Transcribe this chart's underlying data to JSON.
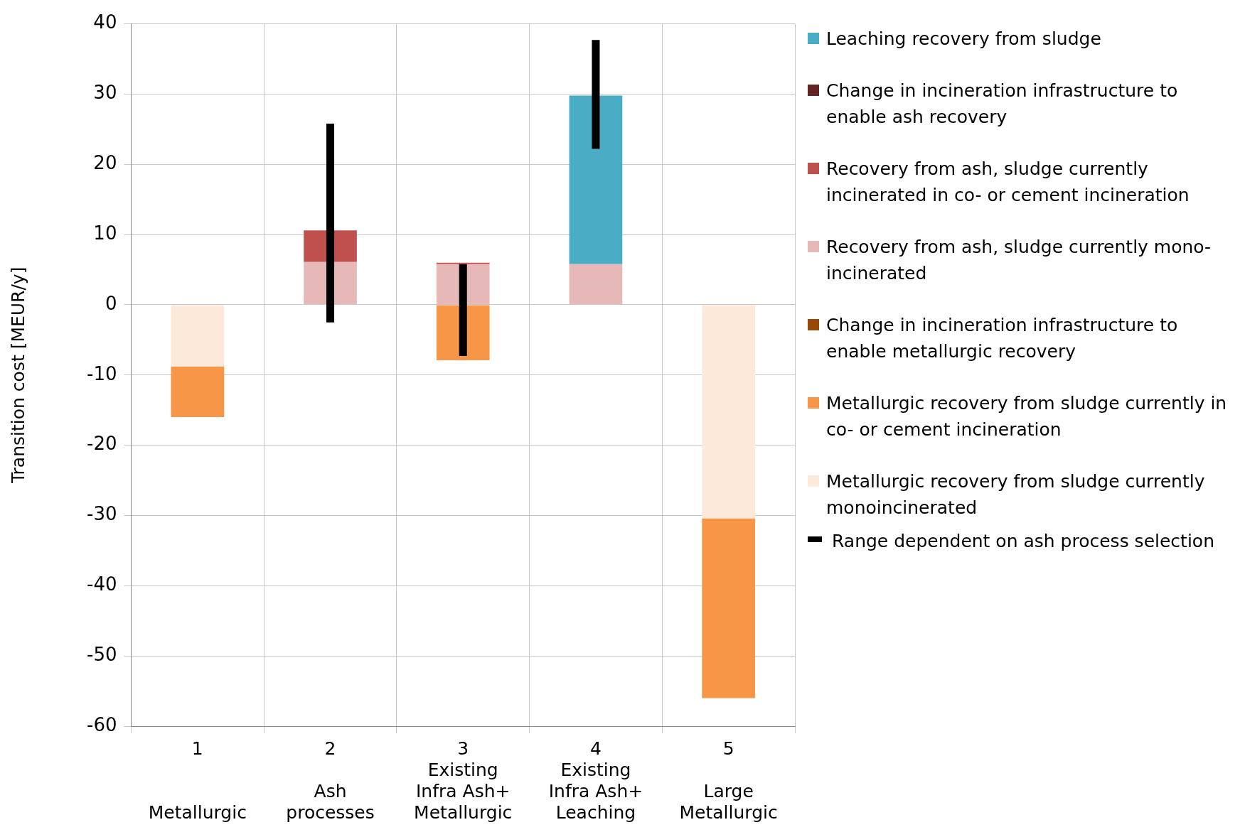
{
  "chart_data": {
    "type": "bar",
    "stacked": true,
    "ylabel": "Transition cost [MEUR/y]",
    "categories": [
      "1\nMetallurgic",
      "2\nAsh\nprocesses",
      "3\nExisting\nInfra Ash+\nMetallurgic",
      "4\nExisting\nInfra Ash+\nLeaching",
      "5\nLarge\nMetallurgic"
    ],
    "ylim": [
      -60,
      40
    ],
    "yticks": [
      -60,
      -50,
      -40,
      -30,
      -20,
      -10,
      0,
      10,
      20,
      30,
      40
    ],
    "grid": true,
    "legend": "right",
    "series": [
      {
        "name": "Range dependent on ash process selection",
        "color": "#000000",
        "values": [
          null,
          null,
          null,
          null,
          null
        ]
      },
      {
        "name": "Metallurgic recovery from sludge currently monoincinerated",
        "color": "#fde9d9",
        "values": [
          -8.8,
          null,
          null,
          null,
          -30.4
        ]
      },
      {
        "name": "Metallurgic recovery from sludge currently in co- or cement incineration",
        "color": "#f79646",
        "values": [
          -7.2,
          null,
          -7.9,
          null,
          -25.6
        ]
      },
      {
        "name": "Change in incineration infrastructure to enable metallurgic recovery",
        "color": "#984807",
        "values": [
          null,
          null,
          null,
          null,
          null
        ]
      },
      {
        "name": "Recovery from ash, sludge currently mono-incinerated",
        "color": "#e6b9b8",
        "values": [
          null,
          6.1,
          5.8,
          5.8,
          null
        ],
        "errors": [
          null,
          [
            -2.5,
            25.8
          ],
          [
            -7.3,
            5.8
          ],
          [
            22.2,
            37.7
          ],
          null
        ]
      },
      {
        "name": "Recovery from ash, sludge currently incinerated in co- or cement incineration",
        "color": "#c0504d",
        "values": [
          null,
          4.5,
          0.2,
          null,
          null
        ]
      },
      {
        "name": "Change in incineration infrastructure to enable ash recovery",
        "color": "#632523",
        "values": [
          null,
          null,
          null,
          null,
          null
        ]
      },
      {
        "name": "Leaching recovery from  sludge",
        "color": "#4bacc6",
        "values": [
          null,
          null,
          null,
          24,
          null
        ]
      }
    ]
  }
}
